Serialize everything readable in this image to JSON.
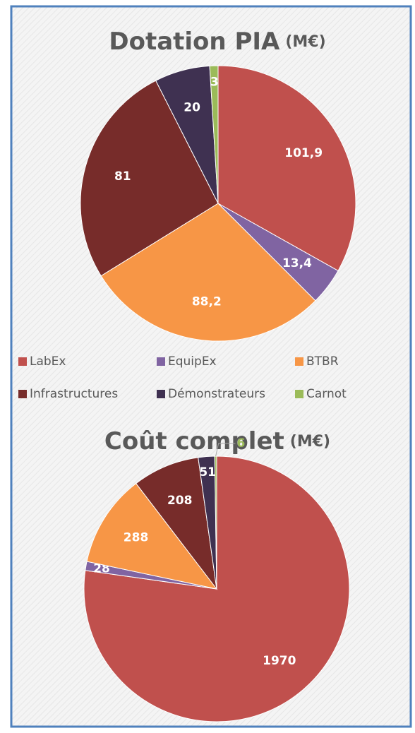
{
  "chart_data": [
    {
      "type": "pie",
      "title": "Dotation PIA",
      "title_unit": "(M€)",
      "categories": [
        "LabEx",
        "EquipEx",
        "BTBR",
        "Infrastructures",
        "Démonstrateurs",
        "Carnot"
      ],
      "colors": [
        "#c0504d",
        "#8064a2",
        "#f79646",
        "#772c2a",
        "#3f3151",
        "#9bbb59"
      ],
      "values": [
        101.9,
        13.4,
        88.2,
        81,
        20,
        3
      ],
      "value_labels": [
        "101,9",
        "13,4",
        "88,2",
        "81",
        "20",
        "3"
      ],
      "legend": "bottom"
    },
    {
      "type": "pie",
      "title": "Coût complet",
      "title_unit": "(M€)",
      "values": [
        1970,
        28,
        288,
        208,
        51,
        6
      ]
    }
  ]
}
